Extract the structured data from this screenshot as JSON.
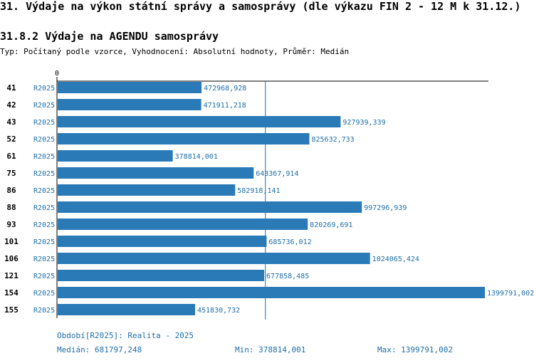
{
  "heading": "31. Výdaje na výkon státní správy a samosprávy (dle výkazu FIN 2 - 12 M k 31.12.)",
  "subheading": "31.8.2 Výdaje na AGENDU samosprávy",
  "description": "Typ: Počítaný podle vzorce, Vyhodnocení: Absolutní hodnoty, Průměr: Medián",
  "colors": {
    "bar": "#2a7ab8",
    "text_blue": "#1f6ea8",
    "axis": "#000000",
    "median_line": "#1f6ea8"
  },
  "chart_data": {
    "type": "bar",
    "orientation": "horizontal",
    "zero_label": "0",
    "xlim": [
      0,
      1399791.002
    ],
    "median": 681797.248,
    "categories": [
      "41",
      "42",
      "43",
      "52",
      "61",
      "75",
      "86",
      "88",
      "93",
      "101",
      "106",
      "121",
      "154",
      "155"
    ],
    "series_label": "R2025",
    "values": [
      472968.928,
      471911.218,
      927939.339,
      825632.733,
      378814.001,
      643367.914,
      582918.141,
      997296.939,
      820269.691,
      685736.012,
      1024065.424,
      677858.485,
      1399791.002,
      451830.732
    ],
    "value_labels": [
      "472968,928",
      "471911,218",
      "927939,339",
      "825632,733",
      "378814,001",
      "643367,914",
      "582918,141",
      "997296,939",
      "820269,691",
      "685736,012",
      "1024065,424",
      "677858,485",
      "1399791,002",
      "451830,732"
    ]
  },
  "footer": {
    "period": "Období[R2025]: Realita - 2025",
    "median": "Medián: 681797,248",
    "min": "Min: 378814,001",
    "max": "Max: 1399791,002"
  }
}
